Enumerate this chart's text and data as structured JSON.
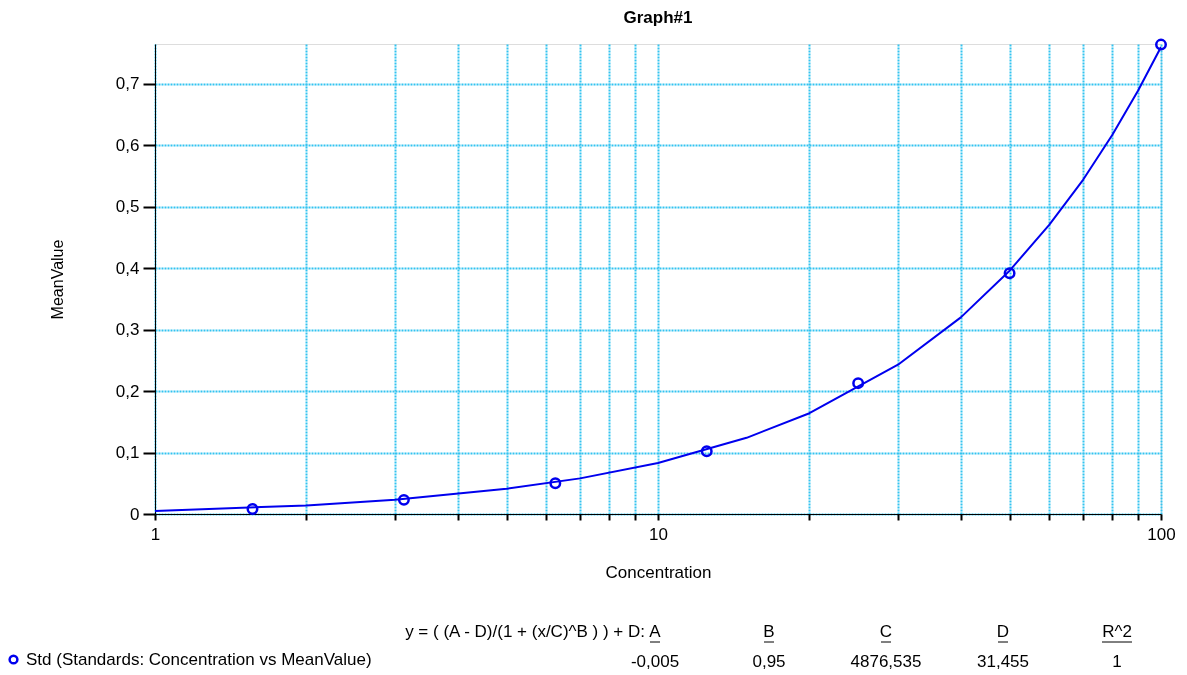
{
  "chart_data": {
    "type": "scatter",
    "title": "Graph#1",
    "xlabel": "Concentration",
    "ylabel": "MeanValue",
    "log": "x",
    "grid": true,
    "legend": "bottom left",
    "xlim": [
      1,
      100
    ],
    "ylim": [
      0,
      0.765
    ],
    "xticks": [
      1,
      {
        "value": 2,
        "label": null
      },
      {
        "value": 3,
        "label": null
      },
      {
        "value": 4,
        "label": null
      },
      {
        "value": 5,
        "label": null
      },
      {
        "value": 6,
        "label": null
      },
      {
        "value": 7,
        "label": null
      },
      {
        "value": 8,
        "label": null
      },
      {
        "value": 9,
        "label": null
      },
      10,
      {
        "value": 20,
        "label": null
      },
      {
        "value": 30,
        "label": null
      },
      {
        "value": 40,
        "label": null
      },
      {
        "value": 50,
        "label": null
      },
      {
        "value": 60,
        "label": null
      },
      {
        "value": 70,
        "label": null
      },
      {
        "value": 80,
        "label": null
      },
      {
        "value": 90,
        "label": null
      },
      100
    ],
    "yticks": [
      0,
      {
        "value": 0.1,
        "label": "0,1"
      },
      {
        "value": 0.2,
        "label": "0,2"
      },
      {
        "value": 0.3,
        "label": "0,3"
      },
      {
        "value": 0.4,
        "label": "0,4"
      },
      {
        "value": 0.5,
        "label": "0,5"
      },
      {
        "value": 0.6,
        "label": "0,6"
      },
      {
        "value": 0.7,
        "label": "0,7"
      }
    ],
    "series": [
      {
        "name": "Std (Standards: Concentration vs MeanValue)",
        "type": "scatter",
        "marker": "circle",
        "color": "#0000ee",
        "x": [
          1.5625,
          3.125,
          6.25,
          12.5,
          25,
          50,
          100
        ],
        "values": [
          0.008,
          0.023,
          0.05,
          0.102,
          0.213,
          0.392,
          0.764
        ]
      },
      {
        "type": "line",
        "marker": "none",
        "line_style": "solid",
        "color": "#0000ee",
        "x": [
          1,
          2,
          3,
          5,
          7,
          10,
          15,
          20,
          30,
          40,
          50,
          60,
          70,
          80,
          90,
          100
        ],
        "values": [
          0.005,
          0.014,
          0.023,
          0.041,
          0.058,
          0.083,
          0.124,
          0.164,
          0.243,
          0.32,
          0.396,
          0.471,
          0.544,
          0.617,
          0.689,
          0.76
        ]
      }
    ],
    "annotations": [
      "y = ( (A - D)/(1 + (x/C)^B ) ) + D:",
      "A",
      "B",
      "C",
      "D",
      "R^2",
      "-0,005",
      "0,95",
      "4876,535",
      "31,455",
      "1"
    ]
  }
}
